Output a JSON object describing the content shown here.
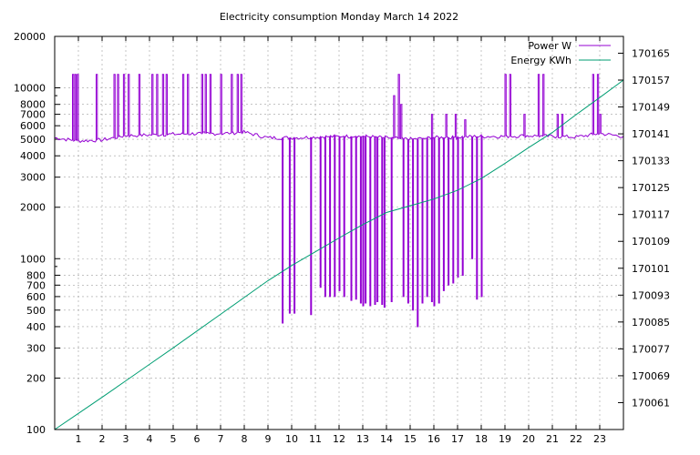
{
  "chart_data": {
    "type": "line",
    "title": "Electricity consumption Monday March 14 2022",
    "xlabel": "",
    "ylabel": "",
    "y2label": "",
    "x_ticks": [
      1,
      2,
      3,
      4,
      5,
      6,
      7,
      8,
      9,
      10,
      11,
      12,
      13,
      14,
      15,
      16,
      17,
      18,
      19,
      20,
      21,
      22,
      23
    ],
    "xlim": [
      0,
      24
    ],
    "ylim": [
      100,
      20000
    ],
    "y_scale": "log",
    "y_ticks": [
      100,
      200,
      300,
      400,
      500,
      600,
      700,
      800,
      1000,
      2000,
      3000,
      4000,
      5000,
      6000,
      7000,
      8000,
      10000,
      20000
    ],
    "y_tick_labels": [
      "100",
      "200",
      "300",
      "400",
      "500",
      "600",
      "700",
      "800",
      "1000",
      "2000",
      "3000",
      "4000",
      "5000",
      "6000",
      "7000",
      "8000",
      "10000",
      "20000"
    ],
    "y2lim": [
      170053,
      170170
    ],
    "y2_ticks": [
      170061,
      170069,
      170077,
      170085,
      170093,
      170101,
      170109,
      170117,
      170125,
      170133,
      170141,
      170149,
      170157,
      170165
    ],
    "y2_tick_labels": [
      "170061",
      "170069",
      "170077",
      "170085",
      "170093",
      "170101",
      "170109",
      "170117",
      "170125",
      "170133",
      "170141",
      "170149",
      "170157",
      "170165"
    ],
    "grid": true,
    "legend_position": "top-right",
    "series": [
      {
        "name": "Power W",
        "color": "#9400d3",
        "axis": "left",
        "baseline": [
          [
            0,
            5100
          ],
          [
            0.7,
            4950
          ],
          [
            1,
            4900
          ],
          [
            2,
            4950
          ],
          [
            3,
            5250
          ],
          [
            4,
            5300
          ],
          [
            5,
            5350
          ],
          [
            6,
            5400
          ],
          [
            7,
            5400
          ],
          [
            8,
            5500
          ],
          [
            9,
            5100
          ],
          [
            9.5,
            5100
          ],
          [
            10,
            5100
          ],
          [
            11,
            5150
          ],
          [
            12,
            5200
          ],
          [
            13,
            5200
          ],
          [
            14,
            5100
          ],
          [
            15,
            5000
          ],
          [
            16,
            5100
          ],
          [
            17,
            5150
          ],
          [
            18,
            5200
          ],
          [
            19,
            5200
          ],
          [
            20,
            5250
          ],
          [
            21,
            5200
          ],
          [
            22,
            5150
          ],
          [
            23,
            5400
          ],
          [
            24,
            5200
          ]
        ],
        "spikes_high": [
          [
            0.75,
            12000
          ],
          [
            0.85,
            12000
          ],
          [
            0.95,
            12000
          ],
          [
            1.75,
            12000
          ],
          [
            2.5,
            12000
          ],
          [
            2.65,
            12000
          ],
          [
            2.9,
            12000
          ],
          [
            3.1,
            12000
          ],
          [
            3.55,
            12000
          ],
          [
            4.1,
            12000
          ],
          [
            4.3,
            12000
          ],
          [
            4.55,
            12000
          ],
          [
            4.7,
            12000
          ],
          [
            5.4,
            12000
          ],
          [
            5.6,
            12000
          ],
          [
            6.2,
            12000
          ],
          [
            6.35,
            12000
          ],
          [
            6.55,
            12000
          ],
          [
            7.0,
            12000
          ],
          [
            7.45,
            12000
          ],
          [
            7.7,
            12000
          ],
          [
            7.85,
            12000
          ],
          [
            14.3,
            9000
          ],
          [
            14.5,
            12000
          ],
          [
            14.6,
            8000
          ],
          [
            15.9,
            7000
          ],
          [
            16.5,
            7000
          ],
          [
            16.9,
            7000
          ],
          [
            17.3,
            6500
          ],
          [
            19.0,
            12000
          ],
          [
            19.2,
            12000
          ],
          [
            19.8,
            7000
          ],
          [
            20.4,
            12000
          ],
          [
            20.6,
            12000
          ],
          [
            21.2,
            7000
          ],
          [
            21.4,
            7000
          ],
          [
            22.7,
            12000
          ],
          [
            22.9,
            12000
          ],
          [
            23.0,
            7000
          ]
        ],
        "spikes_low": [
          [
            9.6,
            420
          ],
          [
            9.9,
            480
          ],
          [
            10.1,
            480
          ],
          [
            10.8,
            470
          ],
          [
            11.2,
            680
          ],
          [
            11.4,
            600
          ],
          [
            11.6,
            600
          ],
          [
            11.8,
            600
          ],
          [
            12.0,
            650
          ],
          [
            12.2,
            600
          ],
          [
            12.5,
            570
          ],
          [
            12.7,
            580
          ],
          [
            12.9,
            550
          ],
          [
            13.0,
            530
          ],
          [
            13.1,
            550
          ],
          [
            13.3,
            530
          ],
          [
            13.5,
            540
          ],
          [
            13.6,
            560
          ],
          [
            13.8,
            540
          ],
          [
            13.9,
            520
          ],
          [
            14.2,
            560
          ],
          [
            14.7,
            600
          ],
          [
            14.9,
            550
          ],
          [
            15.1,
            500
          ],
          [
            15.3,
            400
          ],
          [
            15.5,
            550
          ],
          [
            15.7,
            600
          ],
          [
            15.9,
            560
          ],
          [
            16.0,
            530
          ],
          [
            16.2,
            550
          ],
          [
            16.4,
            650
          ],
          [
            16.6,
            700
          ],
          [
            16.8,
            720
          ],
          [
            17.0,
            780
          ],
          [
            17.2,
            800
          ],
          [
            17.6,
            1000
          ],
          [
            17.8,
            580
          ],
          [
            18.0,
            600
          ]
        ],
        "summary": "Daytime baseload about 5000 W with repeated 12000 W heating pulses 0-8h and 19-24h; 9.5-18h oscillates between about 400-1900 W and 5200-7000 W"
      },
      {
        "name": "Energy KWh",
        "color": "#009e73",
        "axis": "right",
        "x": [
          0,
          1,
          2,
          3,
          4,
          5,
          6,
          7,
          8,
          9,
          10,
          11,
          12,
          13,
          14,
          15,
          16,
          17,
          18,
          19,
          20,
          21,
          22,
          23,
          24
        ],
        "y": [
          170053.0,
          170057.8,
          170062.6,
          170067.5,
          170072.4,
          170077.3,
          170082.3,
          170087.3,
          170092.3,
          170097.3,
          170101.8,
          170105.9,
          170110.0,
          170114.0,
          170117.6,
          170119.6,
          170121.6,
          170124.2,
          170127.7,
          170132.2,
          170136.9,
          170141.4,
          170146.7,
          170151.8,
          170157.0
        ]
      }
    ]
  }
}
